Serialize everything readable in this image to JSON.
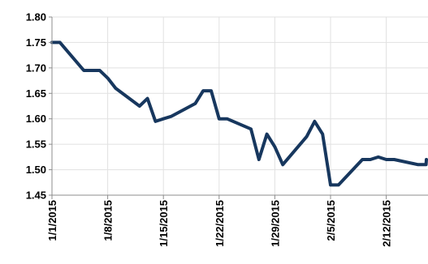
{
  "chart_data": {
    "type": "line",
    "title": "",
    "xlabel": "",
    "ylabel": "",
    "ylim": [
      1.45,
      1.8
    ],
    "y_ticks": [
      "1.80",
      "1.75",
      "1.70",
      "1.65",
      "1.60",
      "1.55",
      "1.50",
      "1.45"
    ],
    "x_ticks": [
      "1/1/2015",
      "1/8/2015",
      "1/15/2015",
      "1/22/2015",
      "1/29/2015",
      "2/5/2015",
      "2/12/2015"
    ],
    "grid": true,
    "legend": "none",
    "line_color": "#17375e",
    "series": [
      {
        "x": [
          "1/1/2015",
          "1/2/2015",
          "1/5/2015",
          "1/6/2015",
          "1/7/2015",
          "1/8/2015",
          "1/9/2015",
          "1/12/2015",
          "1/13/2015",
          "1/14/2015",
          "1/15/2015",
          "1/16/2015",
          "1/19/2015",
          "1/20/2015",
          "1/21/2015",
          "1/22/2015",
          "1/23/2015",
          "1/26/2015",
          "1/27/2015",
          "1/28/2015",
          "1/29/2015",
          "1/30/2015",
          "2/2/2015",
          "2/3/2015",
          "2/4/2015",
          "2/5/2015",
          "2/6/2015",
          "2/9/2015",
          "2/10/2015",
          "2/11/2015",
          "2/12/2015",
          "2/13/2015",
          "2/16/2015",
          "2/17/2015",
          "2/18/2015"
        ],
        "y": [
          1.75,
          1.75,
          1.695,
          1.695,
          1.695,
          1.68,
          1.66,
          1.625,
          1.64,
          1.595,
          1.6,
          1.605,
          1.63,
          1.655,
          1.655,
          1.6,
          1.6,
          1.58,
          1.52,
          1.57,
          1.545,
          1.51,
          1.565,
          1.595,
          1.57,
          1.47,
          1.47,
          1.52,
          1.52,
          1.525,
          1.52,
          1.52,
          1.51,
          1.51,
          1.52
        ]
      }
    ]
  }
}
